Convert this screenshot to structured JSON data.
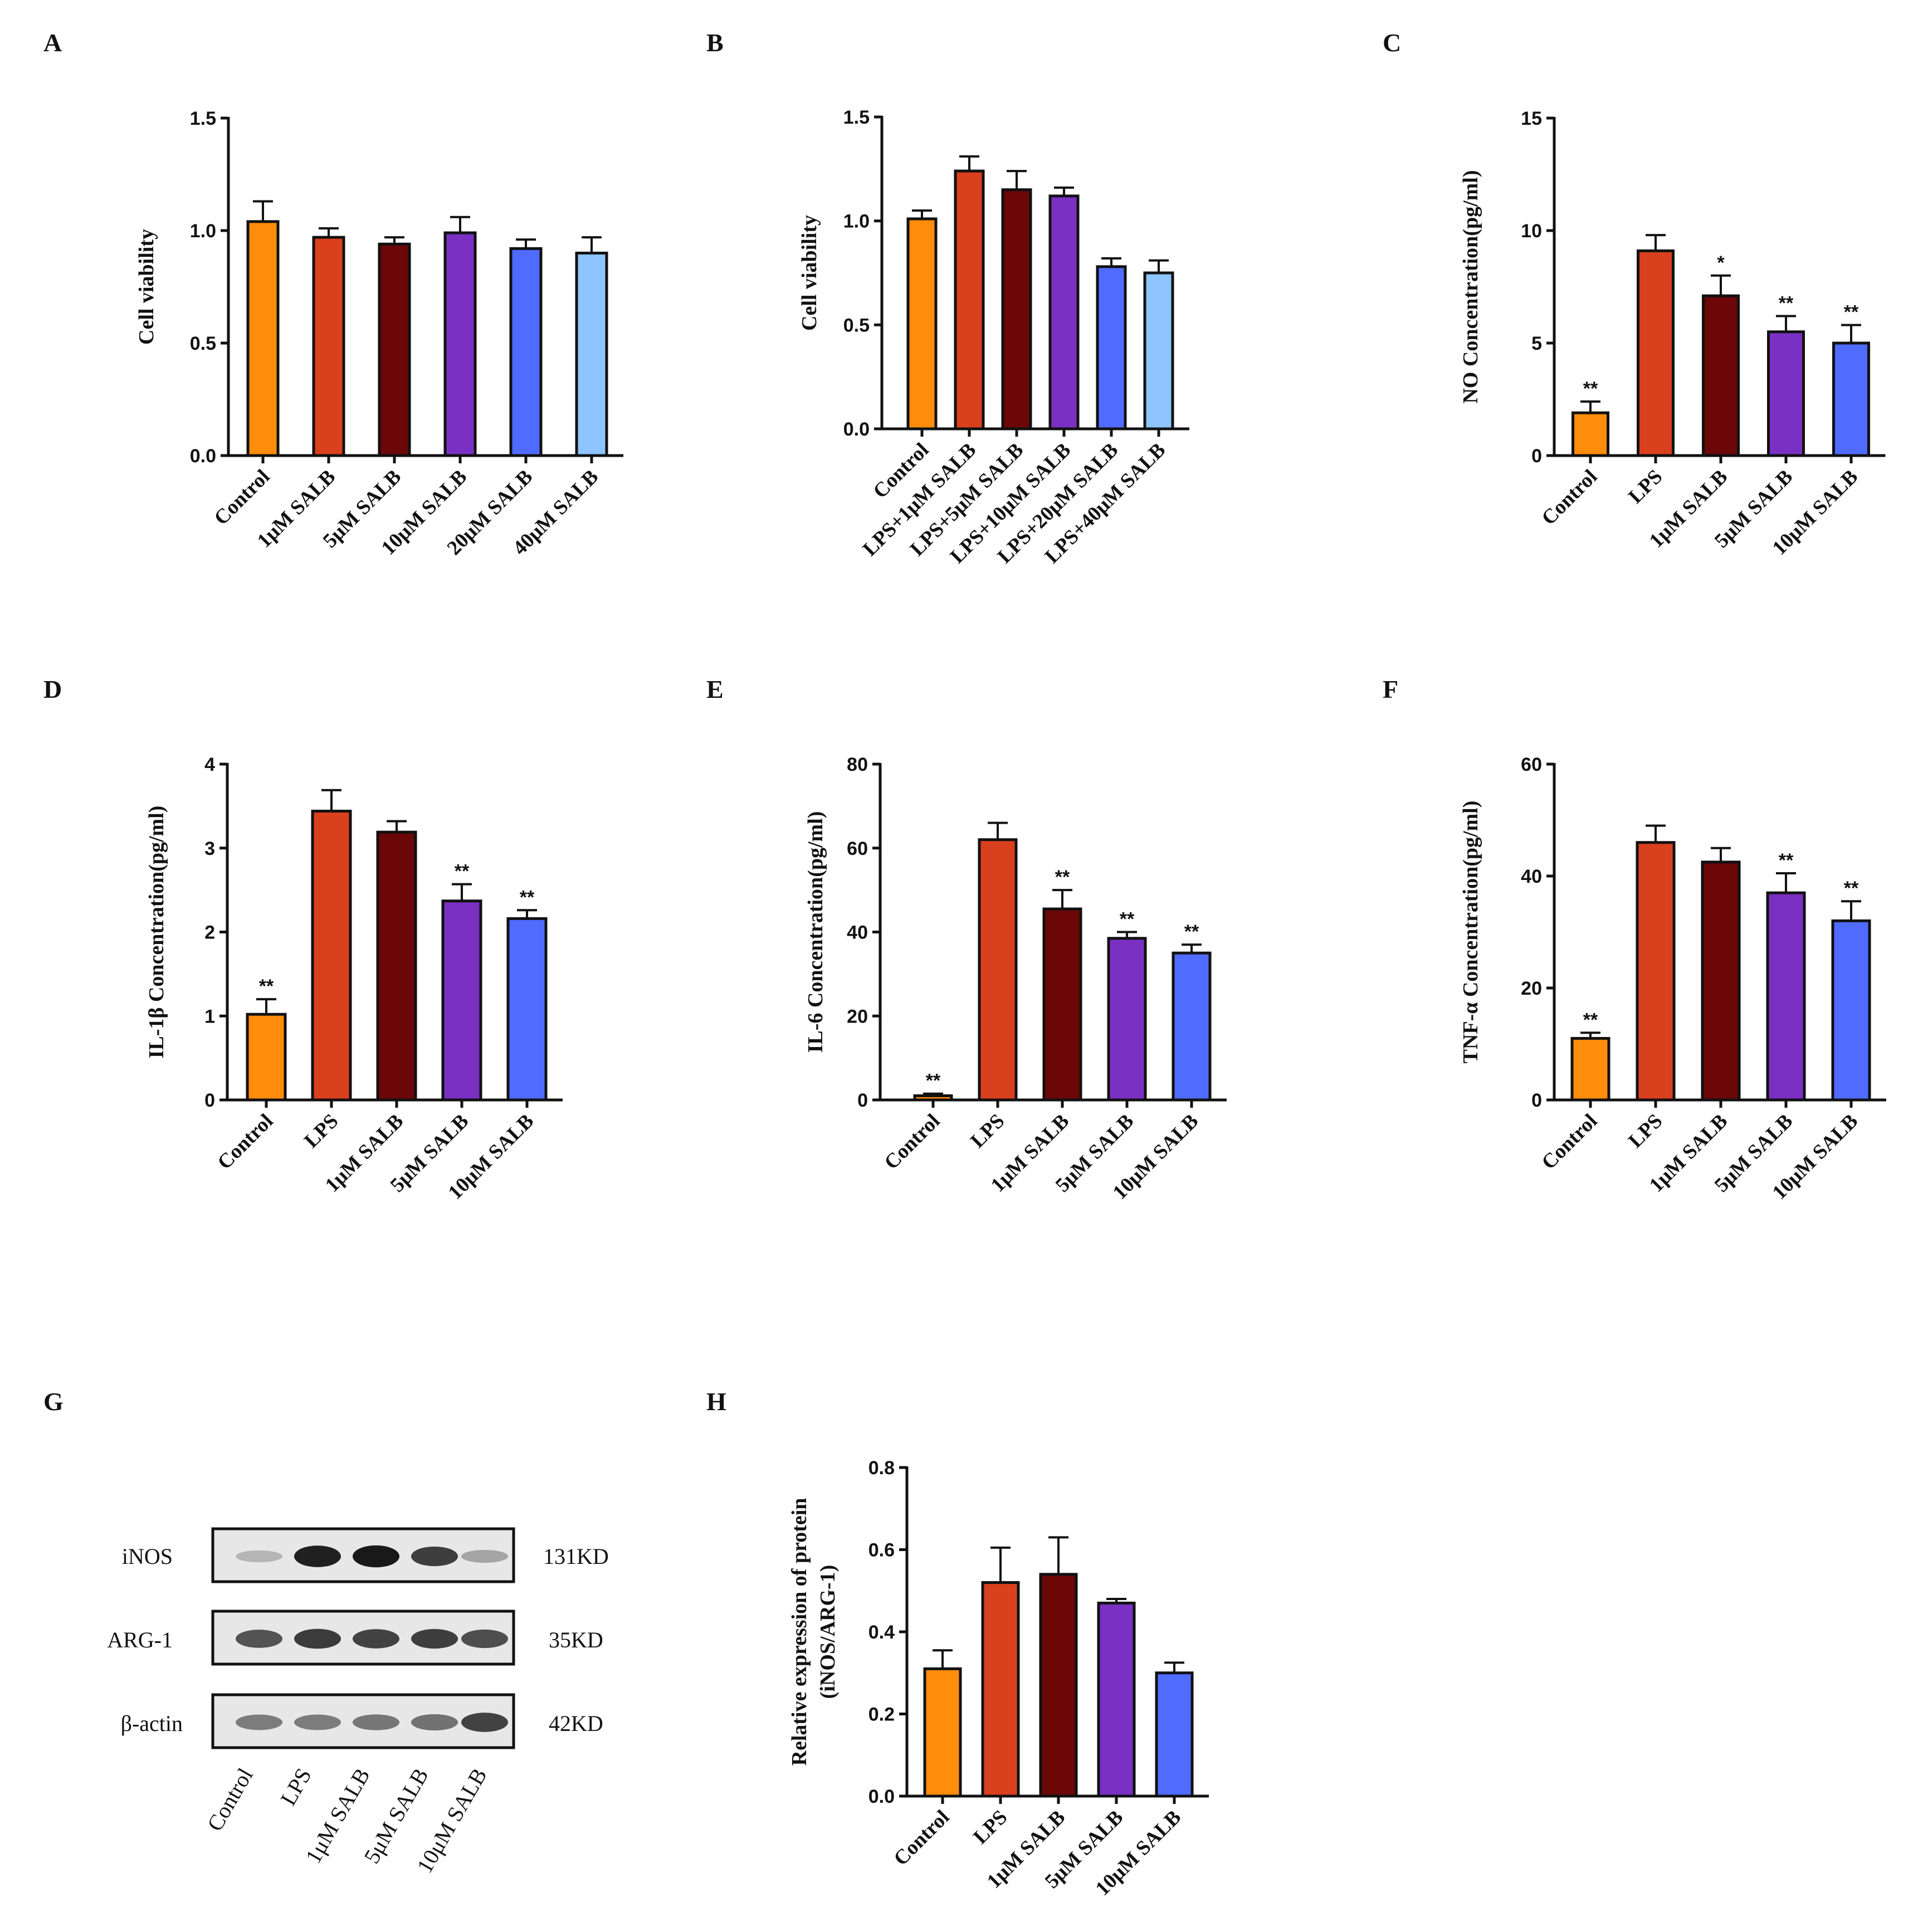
{
  "colors": {
    "orange": "#ff8c0a",
    "red": "#d9401e",
    "maroon": "#6b0707",
    "purple": "#7b30c4",
    "blue": "#4f6cff",
    "lightblue": "#8ec4ff",
    "axis": "#111111"
  },
  "chart_data": [
    {
      "id": "A",
      "panel_label": "A",
      "type": "bar",
      "title": "",
      "xlabel": "",
      "ylabel": "Cell viability",
      "ylim": [
        0,
        1.5
      ],
      "yticks": [
        "0.0",
        "0.5",
        "1.0",
        "1.5"
      ],
      "tick_values": [
        0,
        0.5,
        1.0,
        1.5
      ],
      "categories": [
        "Control",
        "1μM SALB",
        "5μM SALB",
        "10μM SALB",
        "20μM SALB",
        "40μM SALB"
      ],
      "values": [
        1.04,
        0.97,
        0.94,
        0.99,
        0.92,
        0.9
      ],
      "errors": [
        0.09,
        0.04,
        0.03,
        0.07,
        0.04,
        0.07
      ],
      "colors": [
        "orange",
        "red",
        "maroon",
        "purple",
        "blue",
        "lightblue"
      ],
      "significance": [
        "",
        "",
        "",
        "",
        "",
        ""
      ]
    },
    {
      "id": "B",
      "panel_label": "B",
      "type": "bar",
      "title": "",
      "xlabel": "",
      "ylabel": "Cell viability",
      "ylim": [
        0,
        1.5
      ],
      "yticks": [
        "0.0",
        "0.5",
        "1.0",
        "1.5"
      ],
      "tick_values": [
        0,
        0.5,
        1.0,
        1.5
      ],
      "categories": [
        "Control",
        "LPS+1μM SALB",
        "LPS+5μM SALB",
        "LPS+10μM SALB",
        "LPS+20μM SALB",
        "LPS+40μM SALB"
      ],
      "values": [
        1.01,
        1.24,
        1.15,
        1.12,
        0.78,
        0.75
      ],
      "errors": [
        0.04,
        0.07,
        0.09,
        0.04,
        0.04,
        0.06
      ],
      "colors": [
        "orange",
        "red",
        "maroon",
        "purple",
        "blue",
        "lightblue"
      ],
      "significance": [
        "",
        "",
        "",
        "",
        "",
        ""
      ]
    },
    {
      "id": "C",
      "panel_label": "C",
      "type": "bar",
      "title": "",
      "xlabel": "",
      "ylabel": "NO Concentration(pg/ml)",
      "ylim": [
        0,
        15
      ],
      "yticks": [
        "0",
        "5",
        "10",
        "15"
      ],
      "tick_values": [
        0,
        5,
        10,
        15
      ],
      "categories": [
        "Control",
        "LPS",
        "1μM SALB",
        "5μM SALB",
        "10μM SALB"
      ],
      "values": [
        1.9,
        9.1,
        7.1,
        5.5,
        5.0
      ],
      "errors": [
        0.5,
        0.7,
        0.9,
        0.7,
        0.8
      ],
      "colors": [
        "orange",
        "red",
        "maroon",
        "purple",
        "blue"
      ],
      "significance": [
        "**",
        "",
        "*",
        "**",
        "**"
      ]
    },
    {
      "id": "D",
      "panel_label": "D",
      "type": "bar",
      "title": "",
      "xlabel": "",
      "ylabel": "IL-1β Concentration(pg/ml)",
      "ylim": [
        0,
        4
      ],
      "yticks": [
        "0",
        "1",
        "2",
        "3",
        "4"
      ],
      "tick_values": [
        0,
        1,
        2,
        3,
        4
      ],
      "categories": [
        "Control",
        "LPS",
        "1μM SALB",
        "5μM SALB",
        "10μM SALB"
      ],
      "values": [
        1.02,
        3.44,
        3.19,
        2.37,
        2.16
      ],
      "errors": [
        0.18,
        0.25,
        0.13,
        0.2,
        0.1
      ],
      "colors": [
        "orange",
        "red",
        "maroon",
        "purple",
        "blue"
      ],
      "significance": [
        "**",
        "",
        "",
        "**",
        "**"
      ]
    },
    {
      "id": "E",
      "panel_label": "E",
      "type": "bar",
      "title": "",
      "xlabel": "",
      "ylabel": "IL-6 Concentration(pg/ml)",
      "ylim": [
        0,
        80
      ],
      "yticks": [
        "0",
        "20",
        "40",
        "60",
        "80"
      ],
      "tick_values": [
        0,
        20,
        40,
        60,
        80
      ],
      "categories": [
        "Control",
        "LPS",
        "1μM SALB",
        "5μM SALB",
        "10μM SALB"
      ],
      "values": [
        1,
        62,
        45.5,
        38.5,
        35
      ],
      "errors": [
        0.5,
        4,
        4.5,
        1.5,
        2
      ],
      "colors": [
        "orange",
        "red",
        "maroon",
        "purple",
        "blue"
      ],
      "significance": [
        "**",
        "",
        "**",
        "**",
        "**"
      ]
    },
    {
      "id": "F",
      "panel_label": "F",
      "type": "bar",
      "title": "",
      "xlabel": "",
      "ylabel": "TNF-α Concentration(pg/ml)",
      "ylim": [
        0,
        60
      ],
      "yticks": [
        "0",
        "20",
        "40",
        "60"
      ],
      "tick_values": [
        0,
        20,
        40,
        60
      ],
      "categories": [
        "Control",
        "LPS",
        "1μM SALB",
        "5μM SALB",
        "10μM SALB"
      ],
      "values": [
        11,
        46,
        42.5,
        37,
        32
      ],
      "errors": [
        1,
        3,
        2.5,
        3.5,
        3.5
      ],
      "colors": [
        "orange",
        "red",
        "maroon",
        "purple",
        "blue"
      ],
      "significance": [
        "**",
        "",
        "",
        "**",
        "**"
      ]
    },
    {
      "id": "H",
      "panel_label": "H",
      "type": "bar",
      "title": "",
      "xlabel": "",
      "ylabel": "Relative expression of protein",
      "ylabel2": "(iNOS/ARG-1)",
      "ylim": [
        0,
        0.8
      ],
      "yticks": [
        "0.0",
        "0.2",
        "0.4",
        "0.6",
        "0.8"
      ],
      "tick_values": [
        0,
        0.2,
        0.4,
        0.6,
        0.8
      ],
      "categories": [
        "Control",
        "LPS",
        "1μM SALB",
        "5μM SALB",
        "10μM SALB"
      ],
      "values": [
        0.31,
        0.52,
        0.54,
        0.47,
        0.3
      ],
      "errors": [
        0.045,
        0.085,
        0.09,
        0.01,
        0.025
      ],
      "colors": [
        "orange",
        "red",
        "maroon",
        "purple",
        "blue"
      ],
      "significance": [
        "",
        "",
        "",
        "",
        ""
      ]
    }
  ],
  "western_blot": {
    "panel_label": "G",
    "lanes": [
      "Control",
      "LPS",
      "1μM SALB",
      "5μM SALB",
      "10μM SALB"
    ],
    "rows": [
      {
        "protein": "iNOS",
        "size": "131KD",
        "intensities": [
          0.22,
          0.95,
          0.98,
          0.8,
          0.3
        ]
      },
      {
        "protein": "ARG-1",
        "size": "35KD",
        "intensities": [
          0.7,
          0.82,
          0.78,
          0.8,
          0.72
        ]
      },
      {
        "protein": "β-actin",
        "size": "42KD",
        "intensities": [
          0.5,
          0.5,
          0.52,
          0.55,
          0.78
        ]
      }
    ]
  }
}
